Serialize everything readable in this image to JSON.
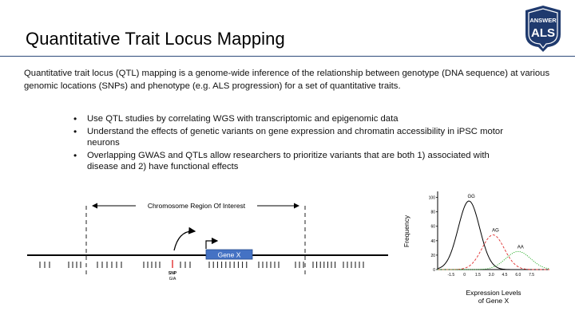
{
  "slide": {
    "title": "Quantitative Trait Locus Mapping",
    "intro": "Quantitative trait locus (QTL) mapping is a genome-wide inference of the relationship between genotype (DNA sequence) at various genomic locations (SNPs) and phenotype (e.g. ALS progression) for a set of quantitative traits.",
    "bullets": [
      "Use QTL studies by correlating WGS with transcriptomic and epigenomic data",
      "Understand the effects of genetic variants on gene expression and chromatin accessibility in iPSC motor neurons",
      "Overlapping GWAS and QTLs allow researchers to prioritize variants that are both 1) associated with disease and 2) have functional effects"
    ]
  },
  "logo": {
    "line1": "ANSWER",
    "line2": "ALS",
    "color": "#1f3a6e"
  },
  "diagram": {
    "region_label": "Chromosome Region Of Interest",
    "gene_label": "Gene X",
    "snp_label": "SNP",
    "snp_alleles": "G/A",
    "gene_color": "#4472c4",
    "snp_color": "#e03030"
  },
  "chart_data": {
    "type": "line",
    "title": "",
    "xlabel": "Expression Levels of Gene X",
    "ylabel": "Frequency",
    "xlim": [
      -3.0,
      9.5
    ],
    "ylim": [
      0,
      105
    ],
    "x_ticks": [
      -1.5,
      0,
      1.5,
      3.0,
      4.5,
      6.0,
      7.5
    ],
    "y_ticks": [
      0,
      20,
      40,
      60,
      80,
      100
    ],
    "series": [
      {
        "name": "GG",
        "mean": 0.5,
        "sd": 1.2,
        "peak": 95,
        "color": "#000000",
        "dash": "solid"
      },
      {
        "name": "AG",
        "mean": 3.2,
        "sd": 1.25,
        "peak": 48,
        "color": "#e03030",
        "dash": "dashed"
      },
      {
        "name": "AA",
        "mean": 6.0,
        "sd": 1.4,
        "peak": 25,
        "color": "#22aa22",
        "dash": "dotted"
      }
    ]
  }
}
